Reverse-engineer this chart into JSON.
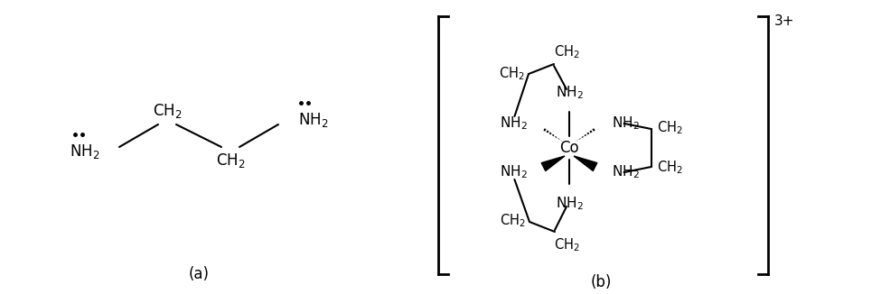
{
  "fig_width": 9.75,
  "fig_height": 3.26,
  "dpi": 100,
  "bg_color": "#ffffff",
  "text_color": "#000000",
  "font_size": 11,
  "label_a": "(a)",
  "label_b": "(b)",
  "charge": "3+"
}
